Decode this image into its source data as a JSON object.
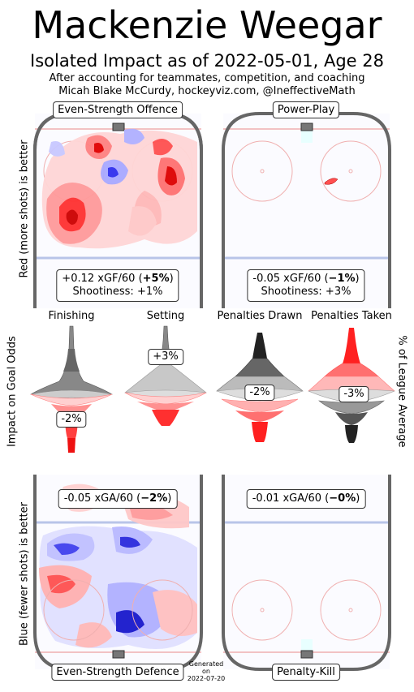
{
  "header": {
    "player_name": "Mackenzie Weegar",
    "subtitle": "Isolated Impact as of 2022-05-01, Age 28",
    "context_line": "After accounting for teammates, competition, and coaching",
    "credit_line": "Micah Blake McCurdy, hockeyviz.com, @IneffectiveMath"
  },
  "axis_labels": {
    "top_left": "Red (more shots) is better",
    "middle_left": "Impact on Goal Odds",
    "middle_right": "% of League Average",
    "bottom_left": "Blue (fewer shots) is better"
  },
  "panels": {
    "even_strength_offence": {
      "label": "Even-Strength Offence",
      "stat_main": "+0.12 xGF/60 (",
      "stat_bold": "+5%",
      "stat_end": ")",
      "shootiness": "Shootiness: +1%"
    },
    "power_play": {
      "label": "Power-Play",
      "stat_main": "-0.05 xGF/60 (",
      "stat_bold": "−1%",
      "stat_end": ")",
      "shootiness": "Shootiness: +3%"
    },
    "even_strength_defence": {
      "label": "Even-Strength Defence",
      "stat_main": "-0.05 xGA/60 (",
      "stat_bold": "−2%",
      "stat_end": ")"
    },
    "penalty_kill": {
      "label": "Penalty-Kill",
      "stat_main": "-0.01 xGA/60 (",
      "stat_bold": "−0%",
      "stat_end": ")"
    }
  },
  "impact": {
    "finishing": {
      "label": "Finishing",
      "value": "-2%"
    },
    "setting": {
      "label": "Setting",
      "value": "+3%"
    },
    "penalties_drawn": {
      "label": "Penalties Drawn",
      "value": "-2%"
    },
    "penalties_taken": {
      "label": "Penalties Taken",
      "value": "-3%"
    }
  },
  "footer": {
    "generated_line1": "Generated",
    "generated_line2": "on",
    "generated_date": "2022-07-20"
  },
  "colors": {
    "rink_board": "#666666",
    "blue_line": "#b8c4e8",
    "red_line": "#f0b0b0",
    "positive": "#ff2020",
    "negative": "#2a2aff",
    "neutral": "#a0a0a0"
  }
}
